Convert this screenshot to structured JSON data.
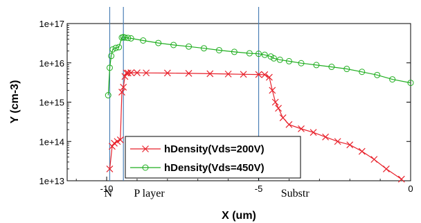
{
  "chart_data": {
    "type": "line",
    "xlabel": "X (um)",
    "ylabel": "Y (cm-3)",
    "xlim": [
      -11.3,
      0
    ],
    "ylim": [
      10000000000000.0,
      1e+17
    ],
    "yscale": "log",
    "xticks": [
      -10,
      -5,
      0
    ],
    "xtick_labels": [
      "-10",
      "-5",
      "0"
    ],
    "yticks": [
      10000000000000.0,
      100000000000000.0,
      1000000000000000.0,
      1e+16,
      1e+17
    ],
    "ytick_labels": [
      "1e+13",
      "1e+14",
      "1e+15",
      "1e+16",
      "1e+17"
    ],
    "vlines": [
      -9.9,
      -9.45,
      -5.0
    ],
    "annotations": [
      {
        "text": "N",
        "x": -9.95,
        "y": 7000000000000.0
      },
      {
        "text": "P layer",
        "x": -8.6,
        "y": 7000000000000.0
      },
      {
        "text": "Substr",
        "x": -3.8,
        "y": 7000000000000.0
      }
    ],
    "legend_position": "bottom-left",
    "series": [
      {
        "name": "hDensity(Vds=200V)",
        "color": "#e8212b",
        "marker": "x",
        "x": [
          -9.9,
          -9.82,
          -9.75,
          -9.65,
          -9.55,
          -9.5,
          -9.45,
          -9.4,
          -9.35,
          -9.3,
          -9.2,
          -9.0,
          -8.7,
          -8.0,
          -7.3,
          -6.6,
          -6.0,
          -5.5,
          -5.0,
          -4.8,
          -4.65,
          -4.55,
          -4.45,
          -4.35,
          -4.2,
          -4.0,
          -3.6,
          -3.2,
          -2.8,
          -2.4,
          -2.0,
          -1.6,
          -1.2,
          -0.8,
          -0.3
        ],
        "y": [
          20000000000000.0,
          75000000000000.0,
          90000000000000.0,
          100000000000000.0,
          110000000000000.0,
          1800000000000000.0,
          2400000000000000.0,
          4500000000000000.0,
          5500000000000000.0,
          5500000000000000.0,
          5600000000000000.0,
          5600000000000000.0,
          5550000000000000.0,
          5500000000000000.0,
          5400000000000000.0,
          5300000000000000.0,
          5200000000000000.0,
          5100000000000000.0,
          5050000000000000.0,
          5000000000000000.0,
          4300000000000000.0,
          2000000000000000.0,
          1000000000000000.0,
          700000000000000.0,
          400000000000000.0,
          270000000000000.0,
          210000000000000.0,
          170000000000000.0,
          130000000000000.0,
          100000000000000.0,
          82000000000000.0,
          56000000000000.0,
          35000000000000.0,
          20000000000000.0,
          11000000000000.0
        ]
      },
      {
        "name": "hDensity(Vds=450V)",
        "color": "#1fae1f",
        "marker": "o",
        "x": [
          -9.95,
          -9.9,
          -9.85,
          -9.8,
          -9.7,
          -9.6,
          -9.5,
          -9.45,
          -9.4,
          -9.3,
          -9.2,
          -8.8,
          -8.3,
          -7.8,
          -7.3,
          -6.8,
          -6.3,
          -5.8,
          -5.3,
          -5.0,
          -4.8,
          -4.6,
          -4.5,
          -4.3,
          -4.0,
          -3.6,
          -3.1,
          -2.6,
          -2.1,
          -1.6,
          -1.1,
          -0.6,
          0.0
        ],
        "y": [
          1500000000000000.0,
          7500000000000000.0,
          1.5e+16,
          2.2e+16,
          2.4e+16,
          2.5e+16,
          4.4e+16,
          4.5e+16,
          4.4e+16,
          4.3e+16,
          4.2e+16,
          3.7e+16,
          3.2e+16,
          2.85e+16,
          2.6e+16,
          2.35e+16,
          2.1e+16,
          1.9e+16,
          1.75e+16,
          1.7e+16,
          1.6e+16,
          1.45e+16,
          1.3e+16,
          1.2e+16,
          1.1e+16,
          9800000000000000.0,
          8800000000000000.0,
          7900000000000000.0,
          7000000000000000.0,
          5900000000000000.0,
          4900000000000000.0,
          3800000000000000.0,
          3100000000000000.0
        ]
      }
    ]
  }
}
